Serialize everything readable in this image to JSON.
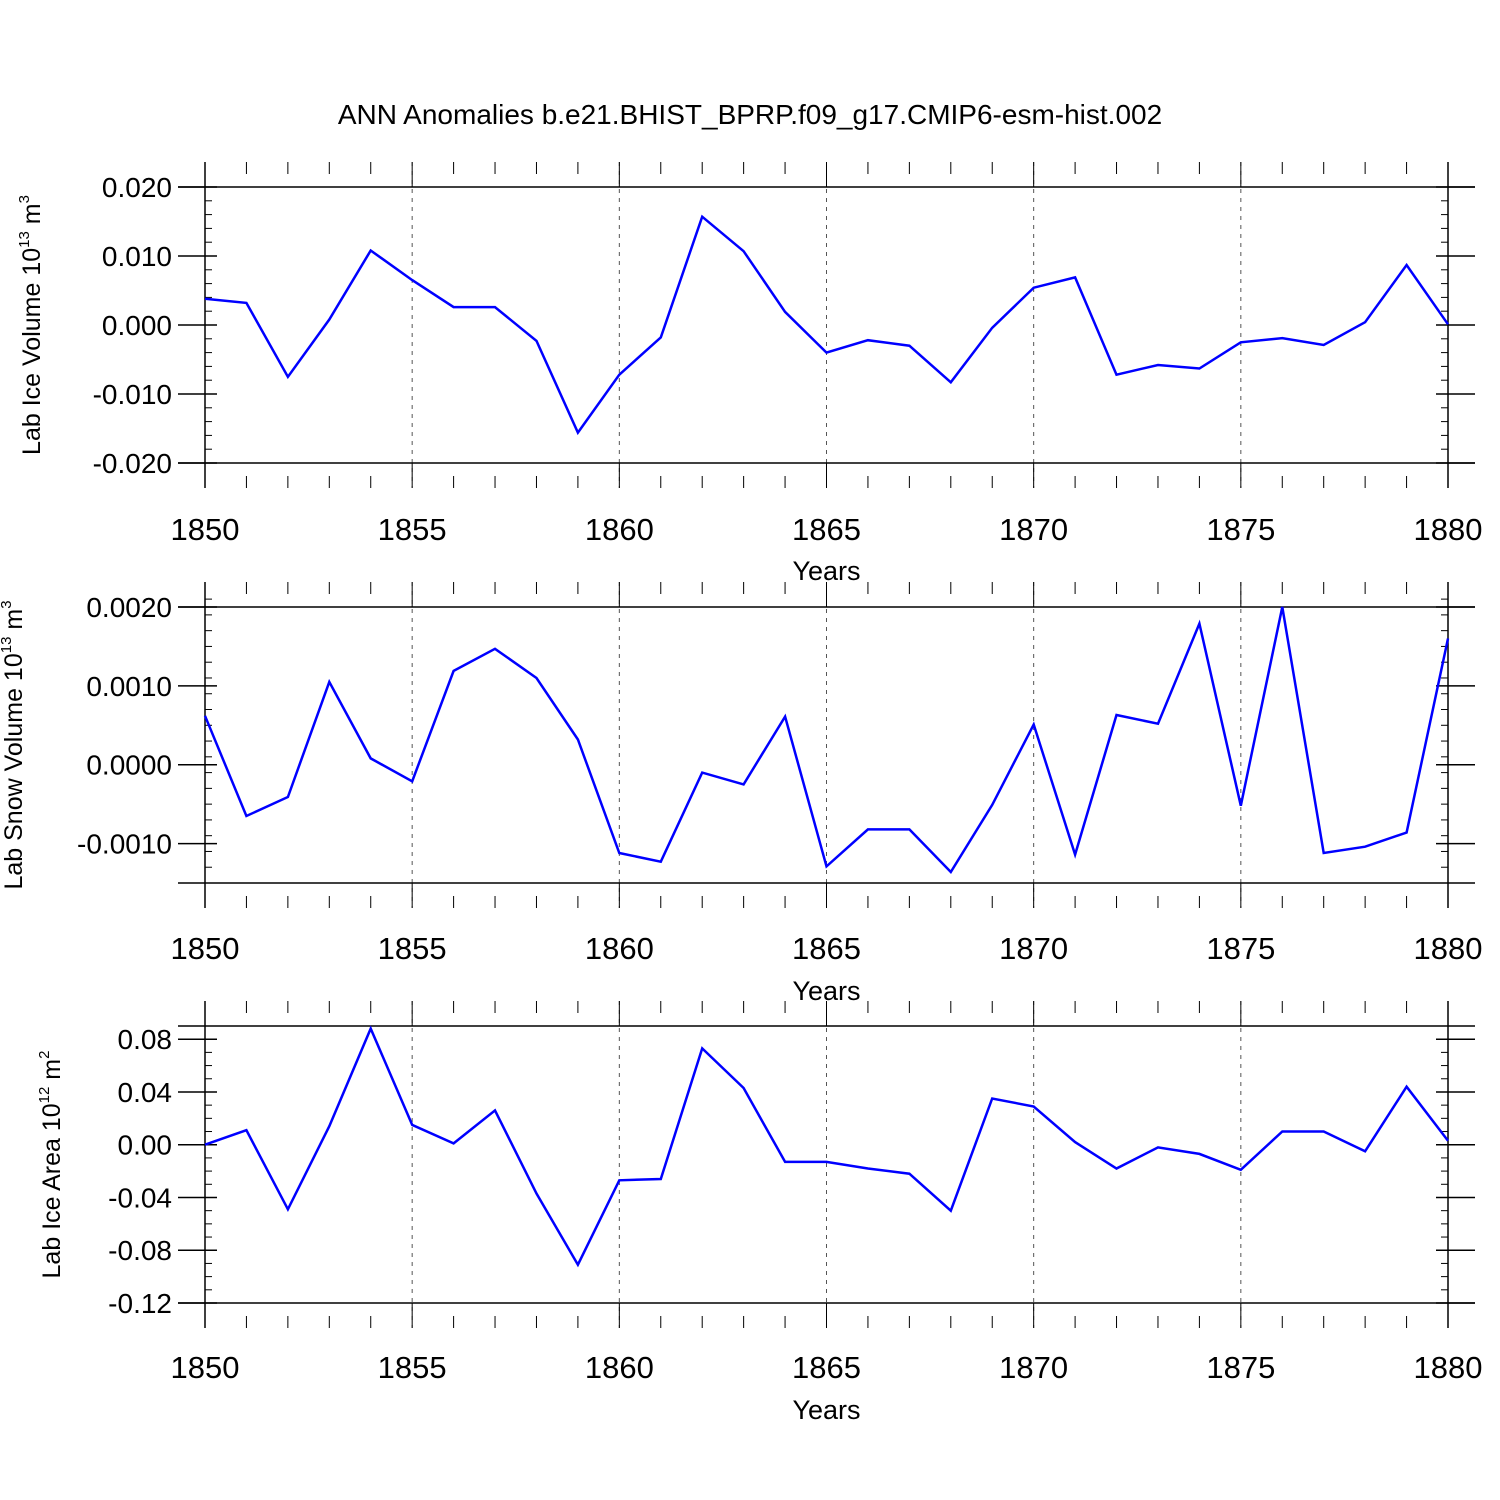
{
  "title": "ANN Anomalies b.e21.BHIST_BPRP.f09_g17.CMIP6-esm-hist.002",
  "colors": {
    "series": "#0000ff",
    "axis": "#000000",
    "grid": "#555555"
  },
  "chart_data": [
    {
      "type": "line",
      "name": "ice-volume",
      "ylabel": {
        "base": "Lab Ice Volume 10",
        "exp": "13",
        "unit": " m",
        "unit_exp": "3"
      },
      "xlabel": "Years",
      "xlim": [
        1850,
        1880
      ],
      "ylim": [
        -0.02,
        0.02
      ],
      "yticks": [
        -0.02,
        -0.01,
        0.0,
        0.01,
        0.02
      ],
      "ytick_labels": [
        "-0.020",
        "-0.010",
        "0.000",
        "0.010",
        "0.020"
      ],
      "yminor_step": 0.002,
      "xticks": [
        1850,
        1855,
        1860,
        1865,
        1870,
        1875,
        1880
      ],
      "xtick_labels": [
        "1850",
        "1855",
        "1860",
        "1865",
        "1870",
        "1875",
        "1880"
      ],
      "grid_x": [
        1855,
        1860,
        1865,
        1870,
        1875
      ],
      "x": [
        1850,
        1851,
        1852,
        1853,
        1854,
        1855,
        1856,
        1857,
        1858,
        1859,
        1860,
        1861,
        1862,
        1863,
        1864,
        1865,
        1866,
        1867,
        1868,
        1869,
        1870,
        1871,
        1872,
        1873,
        1874,
        1875,
        1876,
        1877,
        1878,
        1879,
        1880
      ],
      "values": [
        0.0038,
        0.0032,
        -0.0075,
        0.0008,
        0.0108,
        0.0065,
        0.0026,
        0.0026,
        -0.0023,
        -0.0156,
        -0.0072,
        -0.0018,
        0.0157,
        0.0107,
        0.0019,
        -0.004,
        -0.0022,
        -0.003,
        -0.0083,
        -0.0004,
        0.0054,
        0.0069,
        -0.0072,
        -0.0058,
        -0.0063,
        -0.0025,
        -0.0019,
        -0.0029,
        0.0004,
        0.0087,
        0.0001
      ]
    },
    {
      "type": "line",
      "name": "snow-volume",
      "ylabel": {
        "base": "Lab Snow Volume 10",
        "exp": "13",
        "unit": " m",
        "unit_exp": "3"
      },
      "xlabel": "Years",
      "xlim": [
        1850,
        1880
      ],
      "ylim": [
        -0.0015,
        0.002
      ],
      "yticks": [
        -0.001,
        0.0,
        0.001,
        0.002
      ],
      "ytick_labels": [
        "-0.0010",
        "0.0000",
        "0.0010",
        "0.0020"
      ],
      "yminor_step": 0.0002,
      "xticks": [
        1850,
        1855,
        1860,
        1865,
        1870,
        1875,
        1880
      ],
      "xtick_labels": [
        "1850",
        "1855",
        "1860",
        "1865",
        "1870",
        "1875",
        "1880"
      ],
      "grid_x": [
        1855,
        1860,
        1865,
        1870,
        1875
      ],
      "x": [
        1850,
        1851,
        1852,
        1853,
        1854,
        1855,
        1856,
        1857,
        1858,
        1859,
        1860,
        1861,
        1862,
        1863,
        1864,
        1865,
        1866,
        1867,
        1868,
        1869,
        1870,
        1871,
        1872,
        1873,
        1874,
        1875,
        1876,
        1877,
        1878,
        1879,
        1880
      ],
      "values": [
        0.00062,
        -0.00065,
        -0.00041,
        0.00105,
        8e-05,
        -0.00021,
        0.00119,
        0.00147,
        0.0011,
        0.00032,
        -0.00112,
        -0.00123,
        -0.0001,
        -0.00025,
        0.00061,
        -0.00129,
        -0.00082,
        -0.00082,
        -0.00136,
        -0.00051,
        0.00051,
        -0.00114,
        0.00063,
        0.00052,
        0.00179,
        -0.00052,
        0.002,
        -0.00112,
        -0.00104,
        -0.00086,
        0.0016
      ]
    },
    {
      "type": "line",
      "name": "ice-area",
      "ylabel": {
        "base": "Lab Ice Area 10",
        "exp": "12",
        "unit": " m",
        "unit_exp": "2"
      },
      "xlabel": "Years",
      "xlim": [
        1850,
        1880
      ],
      "ylim": [
        -0.12,
        0.09
      ],
      "yticks": [
        -0.12,
        -0.08,
        -0.04,
        0.0,
        0.04,
        0.08
      ],
      "ytick_labels": [
        "-0.12",
        "-0.08",
        "-0.04",
        "0.00",
        "0.04",
        "0.08"
      ],
      "yminor_step": 0.01,
      "xticks": [
        1850,
        1855,
        1860,
        1865,
        1870,
        1875,
        1880
      ],
      "xtick_labels": [
        "1850",
        "1855",
        "1860",
        "1865",
        "1870",
        "1875",
        "1880"
      ],
      "grid_x": [
        1855,
        1860,
        1865,
        1870,
        1875
      ],
      "x": [
        1850,
        1851,
        1852,
        1853,
        1854,
        1855,
        1856,
        1857,
        1858,
        1859,
        1860,
        1861,
        1862,
        1863,
        1864,
        1865,
        1866,
        1867,
        1868,
        1869,
        1870,
        1871,
        1872,
        1873,
        1874,
        1875,
        1876,
        1877,
        1878,
        1879,
        1880
      ],
      "values": [
        0.0,
        0.011,
        -0.049,
        0.014,
        0.088,
        0.015,
        0.001,
        0.026,
        -0.037,
        -0.091,
        -0.027,
        -0.026,
        0.073,
        0.043,
        -0.013,
        -0.013,
        -0.018,
        -0.022,
        -0.05,
        0.035,
        0.029,
        0.002,
        -0.018,
        -0.002,
        -0.007,
        -0.019,
        0.01,
        0.01,
        -0.005,
        0.044,
        0.003
      ]
    }
  ]
}
